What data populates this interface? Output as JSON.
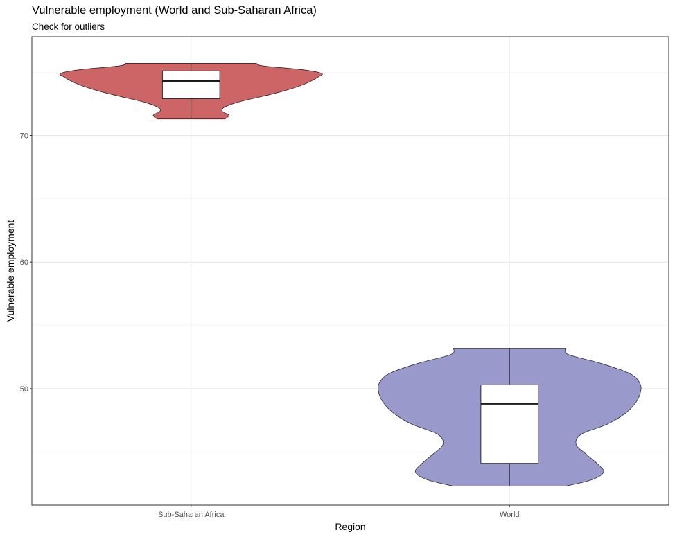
{
  "chart_data": {
    "type": "violin",
    "title": "Vulnerable employment (World and Sub-Saharan Africa)",
    "subtitle": "Check for outliers",
    "xlabel": "Region",
    "ylabel": "Vulnerable employment",
    "categories": [
      "Sub-Saharan Africa",
      "World"
    ],
    "ylim": [
      40.8,
      77.8
    ],
    "yticks": [
      50,
      60,
      70
    ],
    "grid": true,
    "legend": "none",
    "series": [
      {
        "category": "Sub-Saharan Africa",
        "color": "#cd6566",
        "min": 71.3,
        "q1": 72.9,
        "median": 74.3,
        "q3": 75.1,
        "max": 75.7,
        "density": [
          [
            71.3,
            0.26
          ],
          [
            71.6,
            0.29
          ],
          [
            71.9,
            0.24
          ],
          [
            72.2,
            0.25
          ],
          [
            72.6,
            0.35
          ],
          [
            73.0,
            0.51
          ],
          [
            73.4,
            0.67
          ],
          [
            73.8,
            0.8
          ],
          [
            74.2,
            0.9
          ],
          [
            74.6,
            0.97
          ],
          [
            74.9,
            1.0
          ],
          [
            75.2,
            0.85
          ],
          [
            75.5,
            0.55
          ],
          [
            75.7,
            0.5
          ]
        ]
      },
      {
        "category": "World",
        "color": "#9999cc",
        "min": 42.3,
        "q1": 44.1,
        "median": 48.8,
        "q3": 50.3,
        "max": 53.2,
        "density": [
          [
            42.3,
            0.43
          ],
          [
            42.8,
            0.63
          ],
          [
            43.4,
            0.72
          ],
          [
            44.0,
            0.68
          ],
          [
            44.8,
            0.59
          ],
          [
            45.6,
            0.51
          ],
          [
            46.4,
            0.55
          ],
          [
            47.2,
            0.75
          ],
          [
            48.0,
            0.88
          ],
          [
            48.8,
            0.96
          ],
          [
            49.6,
            1.0
          ],
          [
            50.4,
            1.0
          ],
          [
            51.2,
            0.92
          ],
          [
            52.0,
            0.7
          ],
          [
            52.7,
            0.45
          ],
          [
            53.2,
            0.43
          ]
        ]
      }
    ]
  }
}
